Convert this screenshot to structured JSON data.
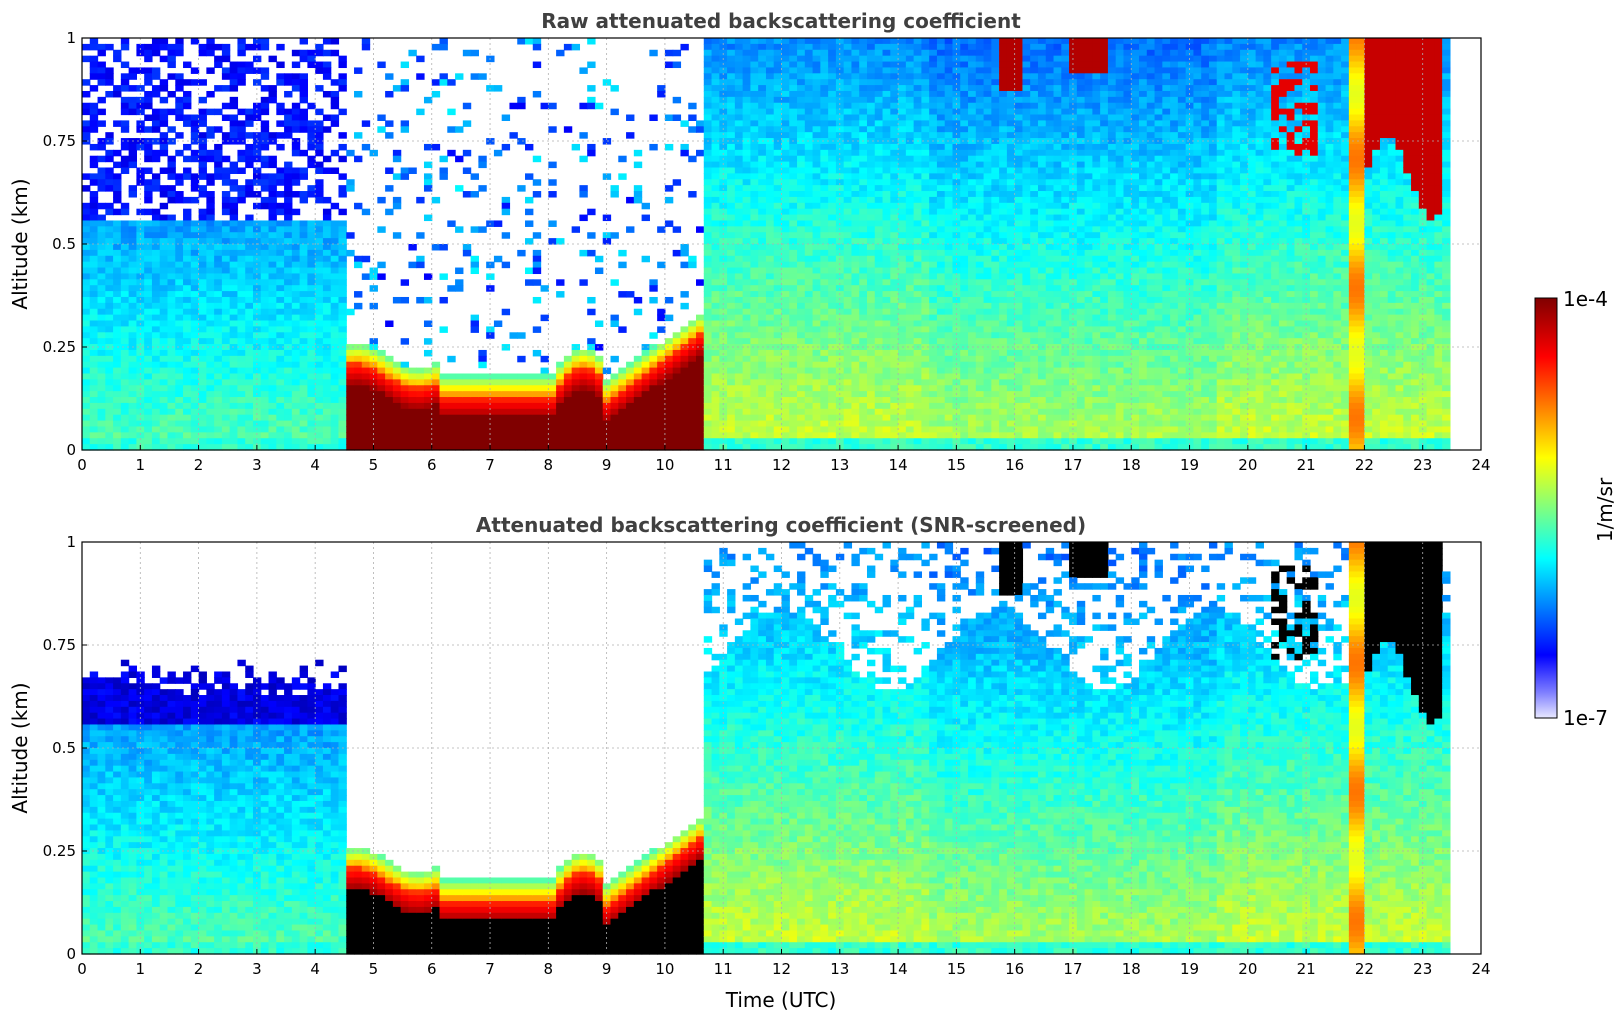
{
  "chart_data": [
    {
      "type": "heatmap",
      "title": "Raw attenuated backscattering coefficient",
      "ylabel": "Altitude (km)",
      "xlabel": "",
      "xlim": [
        0,
        24
      ],
      "ylim": [
        0,
        1
      ],
      "x_ticks": [
        "0",
        "1",
        "2",
        "3",
        "4",
        "5",
        "6",
        "7",
        "8",
        "9",
        "10",
        "11",
        "12",
        "13",
        "14",
        "15",
        "16",
        "17",
        "18",
        "19",
        "20",
        "21",
        "22",
        "23",
        "24"
      ],
      "y_ticks": [
        "0",
        "0.25",
        "0.5",
        "0.75",
        "1"
      ],
      "grid": true,
      "screened": false,
      "features": {
        "fog_layer": {
          "x_range": [
            4.6,
            10.6
          ],
          "top_km": [
            0.12,
            0.28
          ],
          "level": "max"
        },
        "no_signal_region": {
          "x_range": [
            4.6,
            10.6
          ],
          "bottom_km": 0.25
        },
        "boundary_layer_top_km": 0.4,
        "clouds": [
          {
            "x_range": [
              15.7,
              17.6
            ],
            "base_km": 0.88
          },
          {
            "x_range": [
              20.3,
              23.6
            ],
            "base_km": 0.65
          }
        ],
        "precipitation": {
          "x_range": [
            21.7,
            22.1
          ],
          "level": "high"
        },
        "data_end_x": 23.5
      }
    },
    {
      "type": "heatmap",
      "title": "Attenuated backscattering coefficient (SNR-screened)",
      "ylabel": "Altitude (km)",
      "xlabel": "Time (UTC)",
      "xlim": [
        0,
        24
      ],
      "ylim": [
        0,
        1
      ],
      "x_ticks": [
        "0",
        "1",
        "2",
        "3",
        "4",
        "5",
        "6",
        "7",
        "8",
        "9",
        "10",
        "11",
        "12",
        "13",
        "14",
        "15",
        "16",
        "17",
        "18",
        "19",
        "20",
        "21",
        "22",
        "23",
        "24"
      ],
      "y_ticks": [
        "0",
        "0.25",
        "0.5",
        "0.75",
        "1"
      ],
      "grid": true,
      "screened": true,
      "saturated_color": "#000000",
      "features": {
        "fog_layer": {
          "x_range": [
            4.6,
            10.6
          ],
          "top_km": [
            0.12,
            0.28
          ],
          "level": "saturated"
        },
        "screened_region": {
          "x_range": [
            4.6,
            10.6
          ],
          "bottom_km": 0.25
        },
        "aerosol_top_km": [
          0.6,
          0.78
        ],
        "clouds": [
          {
            "x_range": [
              15.7,
              17.6
            ],
            "base_km": 0.88
          },
          {
            "x_range": [
              20.3,
              23.6
            ],
            "base_km": 0.65
          }
        ],
        "precipitation": {
          "x_range": [
            21.7,
            22.1
          ],
          "level": "high"
        },
        "data_end_x": 23.5
      }
    }
  ],
  "colorbar": {
    "label": "1/m/sr",
    "max_label": "1e-4",
    "min_label": "1e-7",
    "scale": "log",
    "range": [
      1e-07,
      0.0001
    ],
    "colormap": "jet"
  }
}
